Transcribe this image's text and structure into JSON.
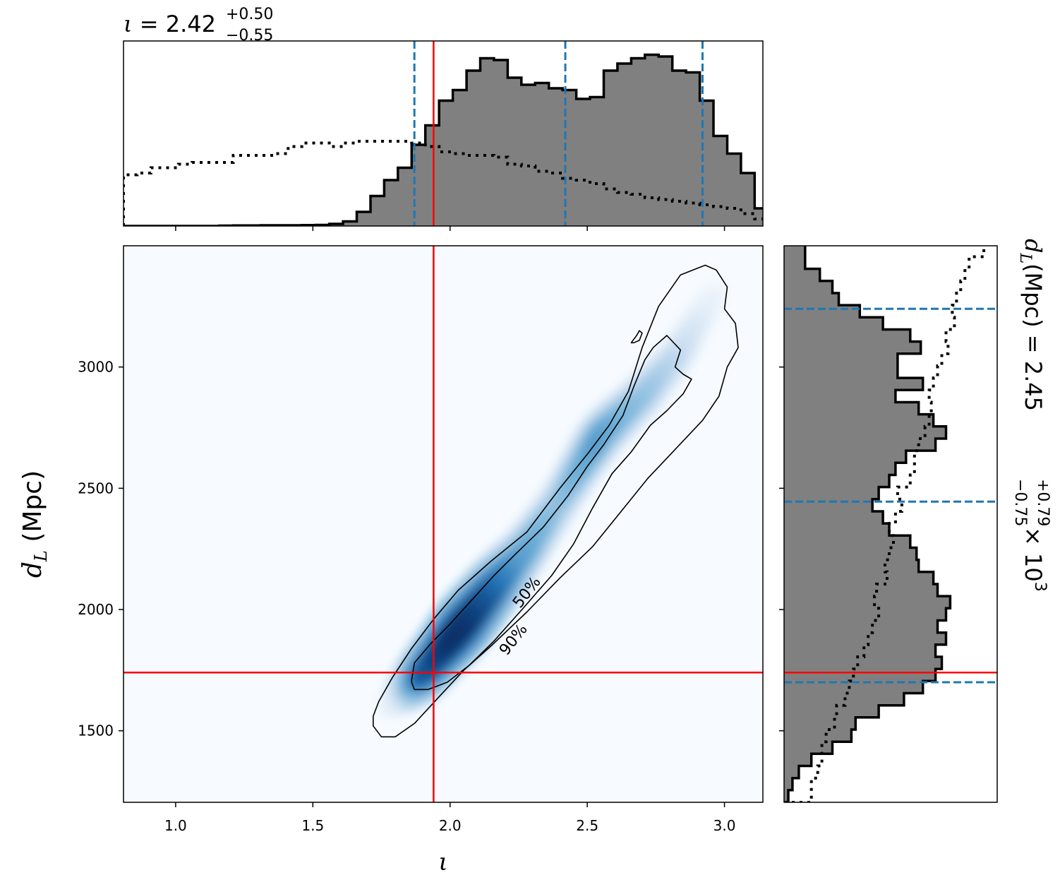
{
  "chart_data": [
    {
      "panel": "joint",
      "type": "heatmap",
      "xlabel": "ι",
      "ylabel": "d_L (Mpc)",
      "xlim": [
        0.81,
        3.14
      ],
      "ylim": [
        1205,
        3500
      ],
      "xticks": [
        "1.0",
        "1.5",
        "2.0",
        "2.5",
        "3.0"
      ],
      "yticks": [
        "1500",
        "2000",
        "2500",
        "3000"
      ],
      "colormap": "Blues",
      "density_ridge": [
        {
          "x": 1.8,
          "y": 1640,
          "w": 0.08
        },
        {
          "x": 1.92,
          "y": 1760,
          "w": 0.78
        },
        {
          "x": 2.05,
          "y": 1940,
          "w": 1.0
        },
        {
          "x": 2.15,
          "y": 2080,
          "w": 0.85
        },
        {
          "x": 2.27,
          "y": 2240,
          "w": 0.55
        },
        {
          "x": 2.4,
          "y": 2450,
          "w": 0.38
        },
        {
          "x": 2.55,
          "y": 2720,
          "w": 0.55
        },
        {
          "x": 2.7,
          "y": 2880,
          "w": 0.4
        },
        {
          "x": 2.82,
          "y": 3040,
          "w": 0.28
        },
        {
          "x": 2.95,
          "y": 3280,
          "w": 0.08
        }
      ],
      "contours": [
        {
          "label": "90%",
          "points": [
            [
              1.72,
              1560
            ],
            [
              1.74,
              1620
            ],
            [
              1.79,
              1720
            ],
            [
              1.86,
              1840
            ],
            [
              1.94,
              1960
            ],
            [
              2.03,
              2080
            ],
            [
              2.15,
              2200
            ],
            [
              2.28,
              2320
            ],
            [
              2.4,
              2500
            ],
            [
              2.5,
              2640
            ],
            [
              2.58,
              2760
            ],
            [
              2.65,
              2900
            ],
            [
              2.7,
              3080
            ],
            [
              2.76,
              3250
            ],
            [
              2.84,
              3380
            ],
            [
              2.93,
              3420
            ],
            [
              2.97,
              3400
            ],
            [
              3.01,
              3330
            ],
            [
              3.0,
              3240
            ],
            [
              3.04,
              3180
            ],
            [
              3.05,
              3080
            ],
            [
              3.01,
              3000
            ],
            [
              2.98,
              2880
            ],
            [
              2.92,
              2780
            ],
            [
              2.82,
              2660
            ],
            [
              2.72,
              2540
            ],
            [
              2.62,
              2400
            ],
            [
              2.52,
              2260
            ],
            [
              2.4,
              2130
            ],
            [
              2.28,
              1990
            ],
            [
              2.15,
              1850
            ],
            [
              2.05,
              1750
            ],
            [
              1.96,
              1640
            ],
            [
              1.87,
              1530
            ],
            [
              1.8,
              1475
            ],
            [
              1.75,
              1475
            ],
            [
              1.72,
              1520
            ]
          ]
        },
        {
          "label": "50%",
          "points": [
            [
              1.86,
              1710
            ],
            [
              1.87,
              1780
            ],
            [
              1.93,
              1860
            ],
            [
              2.0,
              1940
            ],
            [
              2.08,
              2040
            ],
            [
              2.16,
              2140
            ],
            [
              2.24,
              2230
            ],
            [
              2.34,
              2340
            ],
            [
              2.43,
              2470
            ],
            [
              2.5,
              2590
            ],
            [
              2.56,
              2680
            ],
            [
              2.63,
              2800
            ],
            [
              2.67,
              2920
            ],
            [
              2.71,
              3030
            ],
            [
              2.74,
              3080
            ],
            [
              2.79,
              3130
            ],
            [
              2.84,
              3070
            ],
            [
              2.82,
              3000
            ],
            [
              2.85,
              2970
            ],
            [
              2.88,
              2950
            ],
            [
              2.85,
              2890
            ],
            [
              2.79,
              2820
            ],
            [
              2.73,
              2760
            ],
            [
              2.66,
              2650
            ],
            [
              2.59,
              2560
            ],
            [
              2.52,
              2420
            ],
            [
              2.45,
              2270
            ],
            [
              2.37,
              2140
            ],
            [
              2.27,
              2010
            ],
            [
              2.16,
              1870
            ],
            [
              2.07,
              1770
            ],
            [
              1.99,
              1700
            ],
            [
              1.92,
              1670
            ],
            [
              1.87,
              1670
            ],
            [
              1.86,
              1700
            ]
          ]
        },
        {
          "label": "",
          "points": [
            [
              2.66,
              3100
            ],
            [
              2.68,
              3130
            ],
            [
              2.69,
              3150
            ],
            [
              2.7,
              3140
            ],
            [
              2.69,
              3110
            ],
            [
              2.67,
              3100
            ],
            [
              2.66,
              3100
            ]
          ]
        }
      ],
      "truth": {
        "x": 1.94,
        "y": 1740,
        "color": "#ff0000"
      }
    },
    {
      "panel": "top",
      "type": "histogram",
      "title_value": "2.42",
      "title_plus": "+0.50",
      "title_minus": "−0.55",
      "title_symbol": "ι",
      "xlim": [
        0.81,
        3.14
      ],
      "bin_edges": [
        0.81,
        0.86,
        0.91,
        0.96,
        1.01,
        1.06,
        1.11,
        1.16,
        1.21,
        1.26,
        1.31,
        1.36,
        1.41,
        1.46,
        1.51,
        1.56,
        1.61,
        1.66,
        1.71,
        1.76,
        1.81,
        1.86,
        1.91,
        1.96,
        2.01,
        2.06,
        2.11,
        2.16,
        2.21,
        2.26,
        2.31,
        2.36,
        2.41,
        2.46,
        2.51,
        2.56,
        2.61,
        2.66,
        2.71,
        2.76,
        2.81,
        2.86,
        2.91,
        2.96,
        3.01,
        3.06,
        3.11,
        3.14
      ],
      "posterior": [
        0,
        0,
        0,
        0,
        0,
        0,
        0,
        0.002,
        0.003,
        0.003,
        0.004,
        0.004,
        0.004,
        0.005,
        0.006,
        0.012,
        0.026,
        0.08,
        0.17,
        0.26,
        0.33,
        0.46,
        0.57,
        0.71,
        0.77,
        0.88,
        0.95,
        0.94,
        0.84,
        0.8,
        0.81,
        0.78,
        0.77,
        0.72,
        0.73,
        0.88,
        0.92,
        0.95,
        0.97,
        0.96,
        0.88,
        0.87,
        0.71,
        0.51,
        0.41,
        0.3,
        0.1
      ],
      "prior": [
        0.29,
        0.3,
        0.33,
        0.33,
        0.35,
        0.36,
        0.36,
        0.36,
        0.4,
        0.4,
        0.4,
        0.41,
        0.45,
        0.47,
        0.47,
        0.45,
        0.47,
        0.48,
        0.48,
        0.48,
        0.48,
        0.47,
        0.45,
        0.42,
        0.41,
        0.4,
        0.4,
        0.39,
        0.35,
        0.34,
        0.31,
        0.3,
        0.27,
        0.26,
        0.24,
        0.21,
        0.19,
        0.18,
        0.16,
        0.15,
        0.14,
        0.13,
        0.12,
        0.11,
        0.1,
        0.07,
        0.04
      ],
      "quantiles": [
        1.87,
        2.42,
        2.92
      ],
      "truth": 1.94,
      "colors": {
        "fill": "#808080",
        "edge": "#000000",
        "quantile": "#1f77b4",
        "truth": "#ff0000"
      }
    },
    {
      "panel": "right",
      "type": "histogram",
      "orientation": "horizontal",
      "title_symbol": "d_L",
      "title_unit": "(Mpc)",
      "title_value": "2.45",
      "title_plus": "+0.79",
      "title_minus": "−0.75",
      "title_scale": "× 10",
      "title_exp": "3",
      "ylim": [
        1205,
        3500
      ],
      "bin_edges": [
        1205,
        1255,
        1305,
        1355,
        1405,
        1455,
        1505,
        1555,
        1605,
        1655,
        1705,
        1755,
        1805,
        1855,
        1905,
        1955,
        2005,
        2055,
        2105,
        2155,
        2205,
        2255,
        2305,
        2355,
        2405,
        2455,
        2505,
        2555,
        2605,
        2655,
        2705,
        2755,
        2805,
        2855,
        2905,
        2955,
        3005,
        3055,
        3105,
        3155,
        3205,
        3255,
        3305,
        3355,
        3405,
        3455,
        3500
      ],
      "posterior": [
        0.02,
        0.04,
        0.07,
        0.13,
        0.23,
        0.32,
        0.34,
        0.45,
        0.57,
        0.66,
        0.72,
        0.75,
        0.72,
        0.77,
        0.73,
        0.77,
        0.79,
        0.73,
        0.71,
        0.64,
        0.63,
        0.6,
        0.5,
        0.47,
        0.42,
        0.45,
        0.5,
        0.53,
        0.58,
        0.72,
        0.77,
        0.71,
        0.64,
        0.53,
        0.66,
        0.54,
        0.54,
        0.65,
        0.6,
        0.47,
        0.36,
        0.26,
        0.23,
        0.17,
        0.1,
        0.1
      ],
      "prior": [
        0.13,
        0.13,
        0.16,
        0.18,
        0.18,
        0.2,
        0.24,
        0.25,
        0.29,
        0.31,
        0.33,
        0.35,
        0.38,
        0.4,
        0.42,
        0.45,
        0.43,
        0.44,
        0.49,
        0.48,
        0.5,
        0.52,
        0.5,
        0.53,
        0.56,
        0.54,
        0.6,
        0.62,
        0.62,
        0.64,
        0.67,
        0.69,
        0.7,
        0.69,
        0.71,
        0.73,
        0.75,
        0.78,
        0.77,
        0.81,
        0.8,
        0.82,
        0.84,
        0.86,
        0.88,
        0.95
      ],
      "quantiles": [
        1700,
        2445,
        3240
      ],
      "truth": 1740,
      "colors": {
        "fill": "#808080",
        "edge": "#000000",
        "quantile": "#1f77b4",
        "truth": "#ff0000"
      }
    }
  ]
}
